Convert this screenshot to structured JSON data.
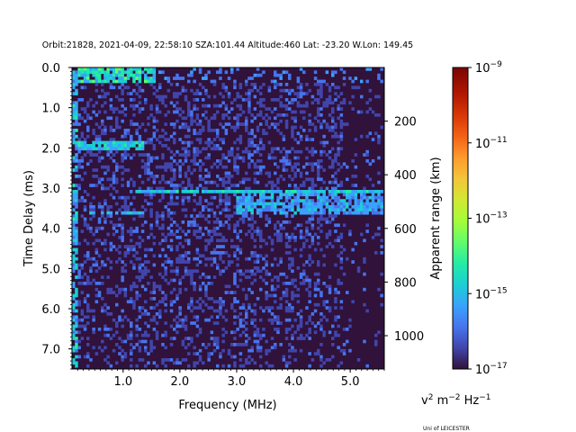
{
  "chart_data": {
    "type": "heatmap",
    "title": "Orbit:21828, 2021-04-09, 22:58:10 SZA:101.44 Altitude:460 Lat: -23.20 W.Lon: 149.45",
    "xlabel": "Frequency (MHz)",
    "ylabel": "Time Delay (ms)",
    "y2label": "Apparent range (km)",
    "xlim": [
      0.1,
      5.6
    ],
    "ylim": [
      7.5,
      0.0
    ],
    "xticks": [
      {
        "v": 1.0,
        "label": "1.0"
      },
      {
        "v": 2.0,
        "label": "2.0"
      },
      {
        "v": 3.0,
        "label": "3.0"
      },
      {
        "v": 4.0,
        "label": "4.0"
      },
      {
        "v": 5.0,
        "label": "5.0"
      }
    ],
    "yticks": [
      {
        "v": 0.0,
        "label": "0.0"
      },
      {
        "v": 1.0,
        "label": "1.0"
      },
      {
        "v": 2.0,
        "label": "2.0"
      },
      {
        "v": 3.0,
        "label": "3.0"
      },
      {
        "v": 4.0,
        "label": "4.0"
      },
      {
        "v": 5.0,
        "label": "5.0"
      },
      {
        "v": 6.0,
        "label": "6.0"
      },
      {
        "v": 7.0,
        "label": "7.0"
      }
    ],
    "y2ticks": [
      {
        "v": 200,
        "label": "200"
      },
      {
        "v": 400,
        "label": "400"
      },
      {
        "v": 600,
        "label": "600"
      },
      {
        "v": 800,
        "label": "800"
      },
      {
        "v": 1000,
        "label": "1000"
      }
    ],
    "colorbar": {
      "scale": "log",
      "range": [
        1e-17,
        1e-09
      ],
      "colormap": "turbo",
      "ticks": [
        {
          "exp": -9,
          "base": "10",
          "sup": "−9"
        },
        {
          "exp": -11,
          "base": "10",
          "sup": "−11"
        },
        {
          "exp": -13,
          "base": "10",
          "sup": "−13"
        },
        {
          "exp": -15,
          "base": "10",
          "sup": "−15"
        },
        {
          "exp": -17,
          "base": "10",
          "sup": "−17"
        }
      ],
      "units": {
        "a": "v",
        "a_sup": "2",
        "b": " m",
        "b_sup": "−2",
        "c": " Hz",
        "c_sup": "−1"
      }
    },
    "background_color": "#30123b"
  },
  "credit": "Uni of LEICESTER"
}
